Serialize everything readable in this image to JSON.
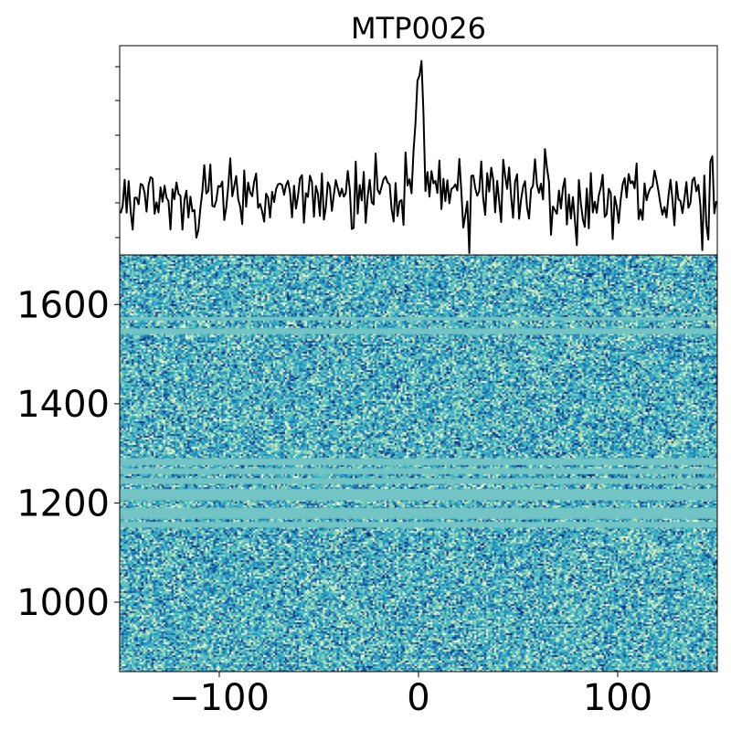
{
  "chart_data": [
    {
      "type": "line",
      "panel": "profile",
      "title": "MTP0026",
      "xlim": [
        -150,
        150
      ],
      "line_color": "#000000",
      "y_ticks_labeled": false,
      "profile": {
        "baseline_mean": 0.0,
        "noise_sigma": 1.0,
        "peak_center": 0,
        "peak_height": 6.2,
        "peak_halfwidth": 3
      }
    },
    {
      "type": "heatmap",
      "panel": "waterfall",
      "xlim": [
        -150,
        150
      ],
      "ylim": [
        860,
        1700
      ],
      "x_ticks": [
        -100,
        0,
        100
      ],
      "x_tick_labels": [
        "−100",
        "0",
        "100"
      ],
      "y_ticks": [
        1000,
        1200,
        1400,
        1600
      ],
      "y_tick_labels": [
        "1000",
        "1200",
        "1400",
        "1600"
      ],
      "colormap": [
        "#f7fcd4",
        "#c7e9b4",
        "#7fcdbb",
        "#41b6c4",
        "#1d91c0",
        "#225ea8",
        "#0c2c84"
      ],
      "masked_color": "#73c4c4",
      "masked_bands": [
        [
          1150,
          1162
        ],
        [
          1168,
          1190
        ],
        [
          1205,
          1228
        ],
        [
          1238,
          1250
        ],
        [
          1258,
          1270
        ],
        [
          1276,
          1290
        ],
        [
          1540,
          1552
        ],
        [
          1568,
          1575
        ]
      ]
    }
  ]
}
